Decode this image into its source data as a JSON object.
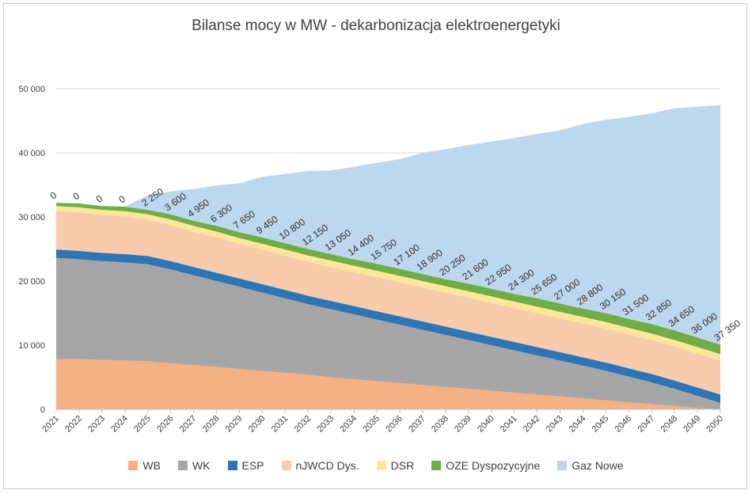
{
  "chart_data": {
    "type": "area",
    "stacked": true,
    "title": "Bilanse mocy w MW - dekarbonizacja elektroenergetyki",
    "ylim": [
      0,
      50000
    ],
    "y_ticks": [
      "0",
      "10 000",
      "20 000",
      "30 000",
      "40 000",
      "50 000"
    ],
    "y_tick_values": [
      0,
      10000,
      20000,
      30000,
      40000,
      50000
    ],
    "grid": "horizontal",
    "legend_position": "bottom",
    "categories": [
      "2021",
      "2022",
      "2023",
      "2024",
      "2025",
      "2026",
      "2027",
      "2028",
      "2029",
      "2030",
      "2031",
      "2032",
      "2033",
      "2034",
      "2035",
      "2036",
      "2037",
      "2038",
      "2039",
      "2040",
      "2041",
      "2042",
      "2043",
      "2044",
      "2045",
      "2046",
      "2047",
      "2048",
      "2049",
      "2050"
    ],
    "series": [
      {
        "name": "WB",
        "color": "#f4b183",
        "values": [
          7800,
          7800,
          7700,
          7600,
          7500,
          7200,
          6900,
          6600,
          6300,
          6000,
          5700,
          5400,
          5000,
          4700,
          4400,
          4100,
          3800,
          3500,
          3200,
          2900,
          2600,
          2300,
          2000,
          1700,
          1400,
          1100,
          800,
          500,
          200,
          0
        ]
      },
      {
        "name": "WK",
        "color": "#a6a6a6",
        "values": [
          15800,
          15600,
          15400,
          15300,
          15100,
          14600,
          14000,
          13400,
          12800,
          12200,
          11600,
          11000,
          10600,
          10100,
          9600,
          9100,
          8600,
          8100,
          7600,
          7100,
          6600,
          6100,
          5600,
          5100,
          4600,
          4000,
          3400,
          2700,
          1900,
          1000
        ]
      },
      {
        "name": "ESP",
        "color": "#2e75b6",
        "values": [
          1300,
          1300,
          1300,
          1300,
          1300,
          1300,
          1300,
          1300,
          1300,
          1300,
          1300,
          1300,
          1300,
          1300,
          1300,
          1300,
          1300,
          1300,
          1300,
          1300,
          1300,
          1300,
          1300,
          1300,
          1300,
          1300,
          1300,
          1300,
          1300,
          1300
        ]
      },
      {
        "name": "nJWCD Dys.",
        "color": "#f8cbad",
        "values": [
          6000,
          6000,
          5900,
          5900,
          5700,
          5600,
          5500,
          5500,
          5400,
          5400,
          5400,
          5300,
          5300,
          5300,
          5300,
          5300,
          5300,
          5300,
          5300,
          5300,
          5300,
          5300,
          5300,
          5300,
          5300,
          5300,
          5300,
          5300,
          5300,
          5300
        ]
      },
      {
        "name": "DSR",
        "color": "#ffe699",
        "values": [
          800,
          800,
          800,
          800,
          800,
          900,
          900,
          900,
          900,
          900,
          900,
          1000,
          1000,
          1000,
          1000,
          1000,
          1000,
          1000,
          1000,
          1000,
          1000,
          1000,
          1000,
          1000,
          1000,
          1000,
          1000,
          1000,
          1000,
          1000
        ]
      },
      {
        "name": "OZE Dyspozycyjne",
        "color": "#70ad47",
        "values": [
          500,
          600,
          600,
          700,
          700,
          800,
          800,
          900,
          900,
          1000,
          1000,
          1000,
          1000,
          1000,
          1100,
          1100,
          1100,
          1100,
          1200,
          1200,
          1200,
          1300,
          1300,
          1300,
          1400,
          1400,
          1500,
          1500,
          1500,
          1500
        ]
      },
      {
        "name": "Gaz Nowe",
        "color": "#bdd7ee",
        "values": [
          0,
          0,
          0,
          0,
          2250,
          3600,
          4950,
          6300,
          7650,
          9450,
          10800,
          12150,
          13050,
          14400,
          15750,
          17100,
          18900,
          20250,
          21600,
          22950,
          24300,
          25650,
          27000,
          28800,
          30150,
          31500,
          32850,
          34650,
          36000,
          37350
        ]
      }
    ],
    "data_labels": [
      "0",
      "0",
      "0",
      "0",
      "2 250",
      "3 600",
      "4 950",
      "6 300",
      "7 650",
      "9 450",
      "10 800",
      "12 150",
      "13 050",
      "14 400",
      "15 750",
      "17 100",
      "18 900",
      "20 250",
      "21 600",
      "22 950",
      "24 300",
      "25 650",
      "27 000",
      "28 800",
      "30 150",
      "31 500",
      "32 850",
      "34 650",
      "36 000",
      "37 350"
    ]
  }
}
